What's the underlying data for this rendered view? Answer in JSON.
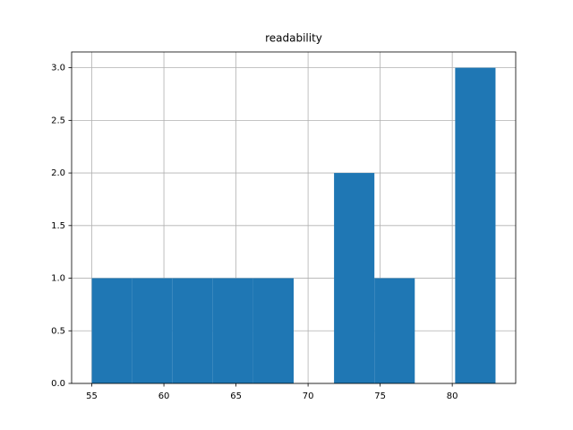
{
  "chart_data": {
    "type": "histogram",
    "title": "readability",
    "bins": [
      55,
      57.8,
      60.6,
      63.4,
      66.2,
      69,
      71.8,
      74.6,
      77.4,
      80.2,
      83
    ],
    "counts": [
      1,
      1,
      1,
      1,
      1,
      0,
      2,
      1,
      0,
      3
    ],
    "color": "#1f77b4",
    "xlim": [
      53.6,
      84.4
    ],
    "xticks": [
      55,
      60,
      65,
      70,
      75,
      80
    ],
    "ylim": [
      0,
      3.15
    ],
    "yticks": [
      {
        "value": 0,
        "label": "0.0"
      },
      {
        "value": 0.5,
        "label": "0.5"
      },
      {
        "value": 1,
        "label": "1.0"
      },
      {
        "value": 1.5,
        "label": "1.5"
      },
      {
        "value": 2,
        "label": "2.0"
      },
      {
        "value": 2.5,
        "label": "2.5"
      },
      {
        "value": 3,
        "label": "3.0"
      }
    ],
    "grid": true
  }
}
